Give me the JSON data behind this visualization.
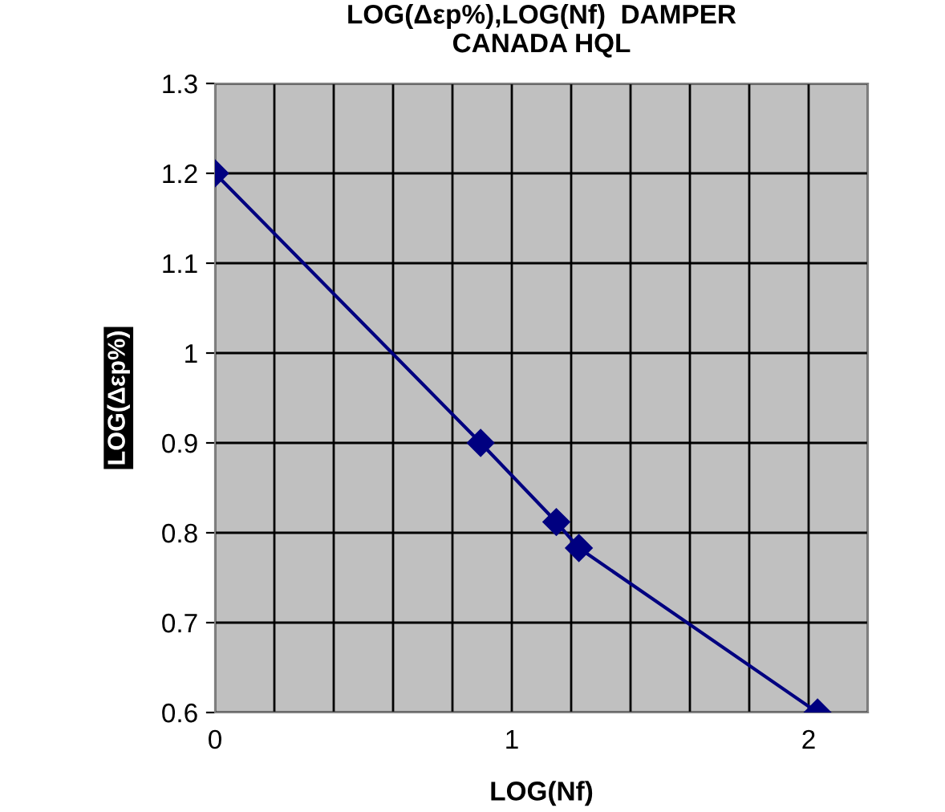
{
  "chart_data": {
    "type": "line",
    "title": "LOG(Δεp%),LOG(Nf)  DAMPER\nCANADA HQL",
    "xlabel": "LOG(Nf)",
    "ylabel": "LOG(Δεp%)",
    "x": [
      0,
      0.895,
      1.15,
      1.226,
      2.03
    ],
    "series": [
      {
        "color": "#000080",
        "values": [
          1.2,
          0.9,
          0.812,
          0.783,
          0.6
        ]
      }
    ],
    "xlim": [
      0,
      2.2
    ],
    "xticks": [
      0,
      {
        "value": 0.2,
        "label": null
      },
      {
        "value": 0.4,
        "label": null
      },
      {
        "value": 0.6,
        "label": null
      },
      {
        "value": 0.8,
        "label": null
      },
      1,
      {
        "value": 1.2,
        "label": null
      },
      {
        "value": 1.4,
        "label": null
      },
      {
        "value": 1.6,
        "label": null
      },
      {
        "value": 1.8,
        "label": null
      },
      2,
      {
        "value": 2.2,
        "label": null
      }
    ],
    "ylim": [
      0.6,
      1.3
    ],
    "yticks": [
      0.6,
      0.7,
      0.8,
      0.9,
      1,
      1.1,
      1.2,
      1.3
    ],
    "grid": true,
    "marker": "diamond",
    "line_style": "solid",
    "legend": false
  }
}
